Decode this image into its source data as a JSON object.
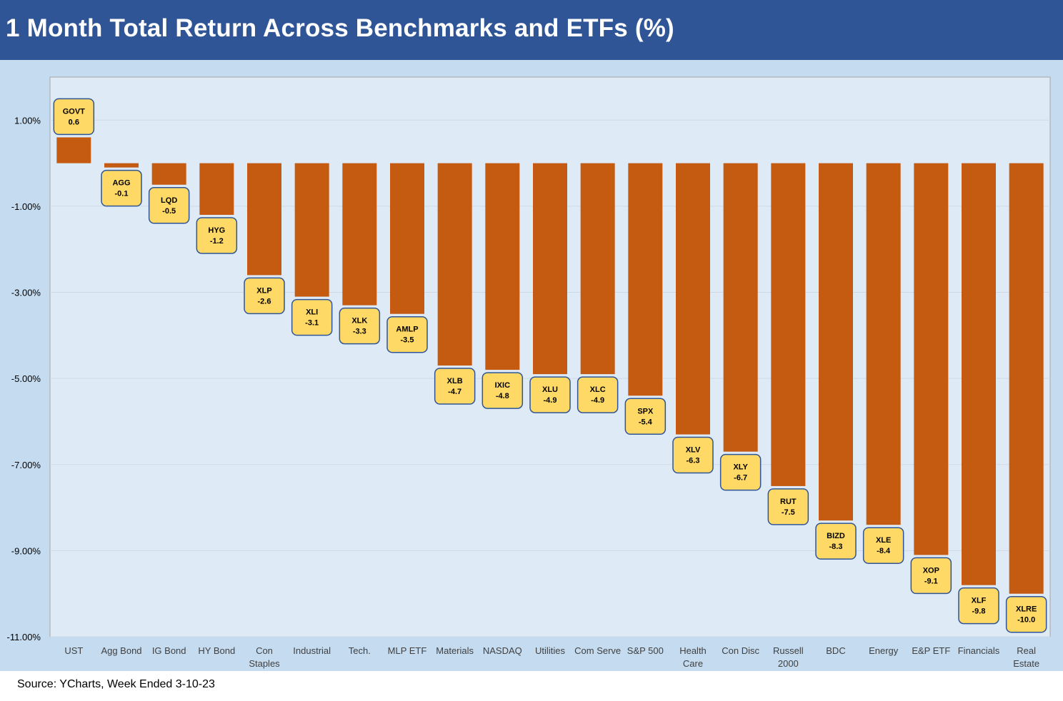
{
  "title": "1 Month Total Return Across Benchmarks and ETFs (%)",
  "source": "Source: YCharts, Week Ended 3-10-23",
  "colors": {
    "title_bg": "#2f5597",
    "outer_bg": "#c5dbf0",
    "plot_bg": "#deebf7",
    "bar": "#c55a11",
    "label_fill": "#ffd966",
    "label_border": "#2f5597",
    "grid": "#cfd9e6"
  },
  "chart_data": {
    "type": "bar",
    "title": "1 Month Total Return Across Benchmarks and ETFs (%)",
    "categories": [
      [
        "UST"
      ],
      [
        "Agg Bond"
      ],
      [
        "IG Bond"
      ],
      [
        "HY Bond"
      ],
      [
        "Con",
        "Staples"
      ],
      [
        "Industrial"
      ],
      [
        "Tech."
      ],
      [
        "MLP ETF"
      ],
      [
        "Materials"
      ],
      [
        "NASDAQ"
      ],
      [
        "Utilities"
      ],
      [
        "Com Serve"
      ],
      [
        "S&P 500"
      ],
      [
        "Health",
        "Care"
      ],
      [
        "Con Disc"
      ],
      [
        "Russell",
        "2000"
      ],
      [
        "BDC"
      ],
      [
        "Energy"
      ],
      [
        "E&P ETF"
      ],
      [
        "Financials"
      ],
      [
        "Real",
        "Estate"
      ]
    ],
    "tickers": [
      "GOVT",
      "AGG",
      "LQD",
      "HYG",
      "XLP",
      "XLI",
      "XLK",
      "AMLP",
      "XLB",
      "IXIC",
      "XLU",
      "XLC",
      "SPX",
      "XLV",
      "XLY",
      "RUT",
      "BIZD",
      "XLE",
      "XOP",
      "XLF",
      "XLRE"
    ],
    "values": [
      0.6,
      -0.1,
      -0.5,
      -1.2,
      -2.6,
      -3.1,
      -3.3,
      -3.5,
      -4.7,
      -4.8,
      -4.9,
      -4.9,
      -5.4,
      -6.3,
      -6.7,
      -7.5,
      -8.3,
      -8.4,
      -9.1,
      -9.8,
      -10.0
    ],
    "value_labels": [
      "0.6",
      "-0.1",
      "-0.5",
      "-1.2",
      "-2.6",
      "-3.1",
      "-3.3",
      "-3.5",
      "-4.7",
      "-4.8",
      "-4.9",
      "-4.9",
      "-5.4",
      "-6.3",
      "-6.7",
      "-7.5",
      "-8.3",
      "-8.4",
      "-9.1",
      "-9.8",
      "-10.0"
    ],
    "yticks": [
      1,
      -1,
      -3,
      -5,
      -7,
      -9,
      -11
    ],
    "ytick_labels": [
      "1.00%",
      "-1.00%",
      "-3.00%",
      "-5.00%",
      "-7.00%",
      "-9.00%",
      "-11.00%"
    ],
    "ylim": [
      -11,
      2
    ],
    "grid": true,
    "legend": "none"
  }
}
